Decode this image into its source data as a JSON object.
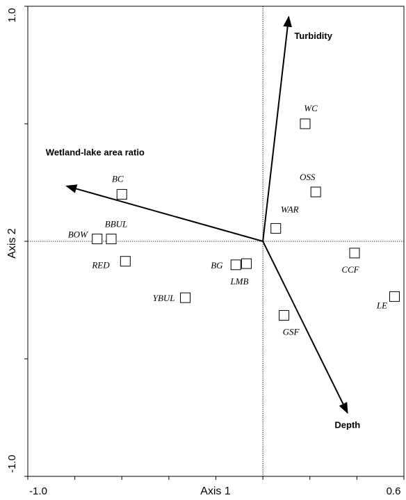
{
  "chart_data": {
    "type": "scatter",
    "subtype": "ordination biplot",
    "xlabel": "Axis 1",
    "ylabel": "Axis 2",
    "xlim": [
      -1.0,
      0.6
    ],
    "ylim": [
      -1.0,
      1.0
    ],
    "x_tick_labels": [
      "-1.0",
      "0.6"
    ],
    "y_tick_labels": [
      "1.0",
      "-1.0"
    ],
    "reference_lines": {
      "x": 0,
      "y": 0,
      "style": "dotted"
    },
    "grid": false,
    "legend": "none",
    "points": [
      {
        "label": "WC",
        "x": 0.18,
        "y": 0.5
      },
      {
        "label": "OSS",
        "x": 0.225,
        "y": 0.21
      },
      {
        "label": "WAR",
        "x": 0.055,
        "y": 0.055
      },
      {
        "label": "BC",
        "x": -0.6,
        "y": 0.2
      },
      {
        "label": "BBUL",
        "x": -0.645,
        "y": 0.01
      },
      {
        "label": "BOW",
        "x": -0.705,
        "y": 0.01
      },
      {
        "label": "RED",
        "x": -0.585,
        "y": -0.085
      },
      {
        "label": "BG",
        "x": -0.115,
        "y": -0.1
      },
      {
        "label": "LMB",
        "x": -0.07,
        "y": -0.095
      },
      {
        "label": "YBUL",
        "x": -0.33,
        "y": -0.24
      },
      {
        "label": "CCF",
        "x": 0.39,
        "y": -0.05
      },
      {
        "label": "LE",
        "x": 0.56,
        "y": -0.235
      },
      {
        "label": "GSF",
        "x": 0.09,
        "y": -0.315
      }
    ],
    "vectors": [
      {
        "label": "Turbidity",
        "x": 0.11,
        "y": 0.955
      },
      {
        "label": "Wetland-lake area ratio",
        "x": -0.835,
        "y": 0.235
      },
      {
        "label": "Depth",
        "x": 0.36,
        "y": -0.73
      }
    ]
  }
}
